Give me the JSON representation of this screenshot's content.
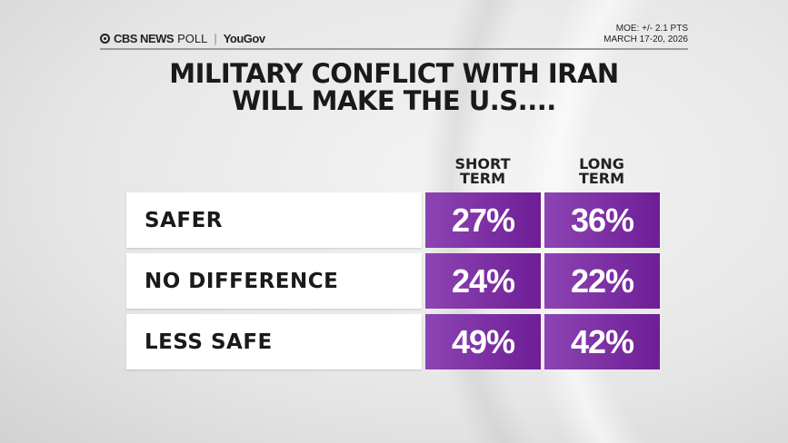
{
  "header": {
    "brand": "CBS NEWS",
    "poll": "POLL",
    "partner": "YouGov",
    "moe": "MOE: +/- 2.1 PTS",
    "dates": "MARCH 17-20, 2026"
  },
  "chart_data": {
    "type": "table",
    "title_line1": "MILITARY CONFLICT WITH IRAN",
    "title_line2": "WILL MAKE THE U.S....",
    "columns": [
      "SHORT TERM",
      "LONG TERM"
    ],
    "column_lines": [
      [
        "SHORT",
        "TERM"
      ],
      [
        "LONG",
        "TERM"
      ]
    ],
    "rows": [
      {
        "label": "SAFER",
        "values": [
          27,
          36
        ],
        "display": [
          "27%",
          "36%"
        ]
      },
      {
        "label": "NO DIFFERENCE",
        "values": [
          24,
          22
        ],
        "display": [
          "24%",
          "22%"
        ]
      },
      {
        "label": "LESS SAFE",
        "values": [
          49,
          42
        ],
        "display": [
          "49%",
          "42%"
        ]
      }
    ],
    "unit": "%",
    "cell_color": "#7b2ea6"
  }
}
